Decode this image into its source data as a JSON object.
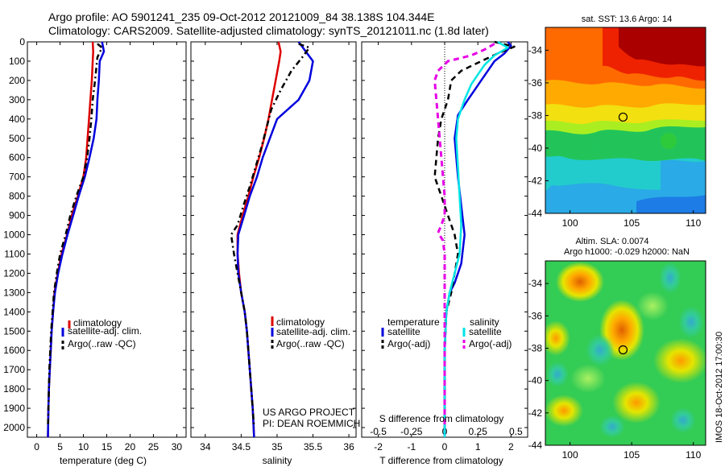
{
  "title_line1": "Argo profile: AO 5901241_235 09-Oct-2012 20121009_84 38.138S 104.344E",
  "title_line2": "Climatology: CARS2009. Satellite-adjusted climatology: synTS_20121011.nc (1.8d later)",
  "depth_ticks": [
    0,
    100,
    200,
    300,
    400,
    500,
    600,
    700,
    800,
    900,
    1000,
    1100,
    1200,
    1300,
    1400,
    1500,
    1600,
    1700,
    1800,
    1900,
    2000
  ],
  "colors": {
    "climatology": "#dd0000",
    "satellite": "#0000dd",
    "argo": "#000000",
    "sal_sat": "#00e5e5",
    "sal_argo": "#e600e6"
  },
  "chart_data": [
    {
      "type": "line",
      "xlabel": "temperature (deg C)",
      "xlim": [
        -2,
        32
      ],
      "x_ticks": [
        0,
        5,
        10,
        15,
        20,
        25,
        30
      ],
      "ylim": [
        2050,
        0
      ],
      "legend": [
        "climatology",
        "satellite-adj. clim.",
        "Argo(..raw -QC)"
      ],
      "series": [
        {
          "name": "climatology",
          "points": [
            [
              12,
              0
            ],
            [
              12.1,
              50
            ],
            [
              12,
              100
            ],
            [
              11.8,
              200
            ],
            [
              11.5,
              300
            ],
            [
              11.2,
              400
            ],
            [
              10.9,
              500
            ],
            [
              10.6,
              600
            ],
            [
              10,
              700
            ],
            [
              8.8,
              800
            ],
            [
              7.5,
              900
            ],
            [
              6.5,
              1000
            ],
            [
              5.3,
              1100
            ],
            [
              4.5,
              1200
            ],
            [
              3.8,
              1300
            ],
            [
              3.5,
              1400
            ],
            [
              3.2,
              1500
            ],
            [
              3,
              1600
            ],
            [
              2.8,
              1700
            ],
            [
              2.6,
              1800
            ],
            [
              2.5,
              1900
            ],
            [
              2.4,
              2050
            ]
          ]
        },
        {
          "name": "satellite-adj. clim.",
          "points": [
            [
              14,
              0
            ],
            [
              14.4,
              50
            ],
            [
              13.5,
              100
            ],
            [
              13.3,
              200
            ],
            [
              13,
              300
            ],
            [
              12.8,
              400
            ],
            [
              12.2,
              500
            ],
            [
              11.3,
              600
            ],
            [
              10.3,
              700
            ],
            [
              9,
              800
            ],
            [
              7.8,
              900
            ],
            [
              6.6,
              1000
            ],
            [
              5.5,
              1100
            ],
            [
              4.6,
              1200
            ],
            [
              3.9,
              1300
            ],
            [
              3.5,
              1400
            ],
            [
              3.2,
              1500
            ],
            [
              3,
              1600
            ],
            [
              2.8,
              1700
            ],
            [
              2.6,
              1800
            ],
            [
              2.5,
              1900
            ],
            [
              2.4,
              2050
            ]
          ]
        },
        {
          "name": "Argo(..raw -QC)",
          "points": [
            [
              13,
              10
            ],
            [
              14,
              30
            ],
            [
              13,
              80
            ],
            [
              12.5,
              200
            ],
            [
              12,
              300
            ],
            [
              11.7,
              400
            ],
            [
              11.3,
              500
            ],
            [
              10.8,
              600
            ],
            [
              10,
              700
            ],
            [
              8.5,
              800
            ],
            [
              7.2,
              900
            ],
            [
              6.2,
              1000
            ],
            [
              5,
              1100
            ],
            [
              4.3,
              1200
            ],
            [
              3.7,
              1300
            ],
            [
              3.4,
              1400
            ],
            [
              3.1,
              1500
            ],
            [
              2.9,
              1600
            ],
            [
              2.7,
              1700
            ],
            [
              2.6,
              1800
            ],
            [
              2.5,
              1900
            ],
            [
              2.4,
              2000
            ]
          ]
        }
      ]
    },
    {
      "type": "line",
      "xlabel": "salinity",
      "xlim": [
        33.8,
        36.1
      ],
      "x_ticks": [
        34,
        34.5,
        35,
        35.5,
        36
      ],
      "ylim": [
        2050,
        0
      ],
      "legend": [
        "climatology",
        "satellite-adj. clim.",
        "Argo(..raw -QC)"
      ],
      "annotation": [
        "US ARGO PROJECT",
        "PI: DEAN ROEMMICH"
      ],
      "series": [
        {
          "name": "climatology",
          "points": [
            [
              35.02,
              0
            ],
            [
              35.05,
              50
            ],
            [
              35.03,
              100
            ],
            [
              34.98,
              200
            ],
            [
              34.93,
              300
            ],
            [
              34.88,
              400
            ],
            [
              34.82,
              500
            ],
            [
              34.75,
              600
            ],
            [
              34.67,
              700
            ],
            [
              34.6,
              800
            ],
            [
              34.52,
              900
            ],
            [
              34.45,
              1000
            ],
            [
              34.45,
              1100
            ],
            [
              34.47,
              1200
            ],
            [
              34.5,
              1300
            ],
            [
              34.55,
              1400
            ],
            [
              34.58,
              1500
            ],
            [
              34.6,
              1600
            ],
            [
              34.62,
              1700
            ],
            [
              34.64,
              1800
            ],
            [
              34.66,
              1900
            ],
            [
              34.68,
              2050
            ]
          ]
        },
        {
          "name": "satellite-adj. clim.",
          "points": [
            [
              35.3,
              0
            ],
            [
              35.4,
              50
            ],
            [
              35.5,
              100
            ],
            [
              35.45,
              200
            ],
            [
              35.3,
              300
            ],
            [
              35,
              400
            ],
            [
              34.9,
              500
            ],
            [
              34.8,
              600
            ],
            [
              34.72,
              700
            ],
            [
              34.62,
              800
            ],
            [
              34.54,
              900
            ],
            [
              34.46,
              1000
            ],
            [
              34.45,
              1100
            ],
            [
              34.46,
              1200
            ],
            [
              34.5,
              1300
            ],
            [
              34.55,
              1400
            ],
            [
              34.58,
              1500
            ],
            [
              34.6,
              1600
            ],
            [
              34.62,
              1700
            ],
            [
              34.64,
              1800
            ],
            [
              34.66,
              1900
            ],
            [
              34.68,
              2050
            ]
          ]
        },
        {
          "name": "Argo(..raw -QC)",
          "points": [
            [
              35.3,
              10
            ],
            [
              35.45,
              30
            ],
            [
              35.35,
              80
            ],
            [
              35.2,
              150
            ],
            [
              35.05,
              250
            ],
            [
              34.92,
              350
            ],
            [
              34.85,
              450
            ],
            [
              34.78,
              550
            ],
            [
              34.7,
              650
            ],
            [
              34.62,
              750
            ],
            [
              34.53,
              850
            ],
            [
              34.45,
              950
            ],
            [
              34.36,
              1000
            ],
            [
              34.4,
              1100
            ],
            [
              34.45,
              1200
            ],
            [
              34.5,
              1300
            ],
            [
              34.55,
              1400
            ],
            [
              34.58,
              1500
            ],
            [
              34.6,
              1600
            ],
            [
              34.62,
              1700
            ],
            [
              34.64,
              1800
            ],
            [
              34.66,
              1900
            ],
            [
              34.68,
              2000
            ]
          ]
        }
      ]
    },
    {
      "type": "line",
      "xlabel": "T difference from climatology",
      "xlabel_top": "S difference from climatology",
      "xlim": [
        -2.5,
        2.5
      ],
      "x_ticks": [
        -2,
        -1,
        0,
        1,
        2
      ],
      "x_ticks_top": [
        "-0.5",
        "-0.25",
        "0",
        "0.25",
        "0.5"
      ],
      "ylim": [
        2050,
        0
      ],
      "legend_headers": [
        "temperature",
        "salinity"
      ],
      "legend": [
        "satellite",
        "Argo(-adj)",
        "satellite",
        "Argo(-adj)"
      ],
      "series": [
        {
          "name": "satellite",
          "points": [
            [
              1.9,
              0
            ],
            [
              2,
              20
            ],
            [
              1.8,
              60
            ],
            [
              1.5,
              100
            ],
            [
              1.3,
              150
            ],
            [
              1.1,
              200
            ],
            [
              0.9,
              250
            ],
            [
              0.7,
              300
            ],
            [
              0.4,
              380
            ],
            [
              0.3,
              500
            ],
            [
              0.4,
              700
            ],
            [
              0.5,
              850
            ],
            [
              0.6,
              1000
            ],
            [
              0.5,
              1150
            ],
            [
              0.3,
              1250
            ],
            [
              0.15,
              1300
            ],
            [
              0.05,
              1400
            ],
            [
              0,
              1600
            ],
            [
              0,
              2050
            ]
          ]
        },
        {
          "name": "Argo(-adj)",
          "points": [
            [
              1.5,
              0
            ],
            [
              2.1,
              25
            ],
            [
              1.6,
              60
            ],
            [
              1.1,
              100
            ],
            [
              0.5,
              150
            ],
            [
              0.2,
              200
            ],
            [
              0.1,
              300
            ],
            [
              -0.1,
              400
            ],
            [
              -0.2,
              500
            ],
            [
              -0.3,
              700
            ],
            [
              -0.1,
              800
            ],
            [
              0.1,
              900
            ],
            [
              0.3,
              1000
            ],
            [
              0.4,
              1100
            ],
            [
              0.3,
              1200
            ],
            [
              0.2,
              1300
            ],
            [
              0.05,
              1400
            ],
            [
              0,
              1600
            ],
            [
              0,
              2000
            ]
          ]
        },
        {
          "name": "satellite",
          "points": [
            [
              1.6,
              0
            ],
            [
              1.9,
              30
            ],
            [
              1.5,
              70
            ],
            [
              1.2,
              120
            ],
            [
              1,
              170
            ],
            [
              0.8,
              220
            ],
            [
              0.6,
              300
            ],
            [
              0.4,
              400
            ],
            [
              0.35,
              500
            ],
            [
              0.4,
              650
            ],
            [
              0.45,
              800
            ],
            [
              0.5,
              950
            ],
            [
              0.45,
              1100
            ],
            [
              0.3,
              1200
            ],
            [
              0.15,
              1300
            ],
            [
              0.05,
              1400
            ],
            [
              0,
              1600
            ],
            [
              0,
              2050
            ]
          ]
        },
        {
          "name": "Argo(-adj)",
          "points": [
            [
              1.5,
              10
            ],
            [
              1.2,
              40
            ],
            [
              0.8,
              70
            ],
            [
              0.1,
              100
            ],
            [
              -0.2,
              150
            ],
            [
              -0.3,
              200
            ],
            [
              -0.25,
              300
            ],
            [
              -0.2,
              400
            ],
            [
              -0.15,
              500
            ],
            [
              -0.1,
              600
            ],
            [
              -0.05,
              700
            ],
            [
              0,
              800
            ],
            [
              0,
              900
            ],
            [
              -0.1,
              950
            ],
            [
              -0.2,
              990
            ],
            [
              -0.05,
              1030
            ],
            [
              0,
              1100
            ],
            [
              0,
              1200
            ],
            [
              0,
              1400
            ],
            [
              0,
              2000
            ]
          ]
        }
      ]
    },
    {
      "type": "heatmap",
      "title": "sat. SST: 13.6 Argo: 14",
      "xlim": [
        98,
        111
      ],
      "ylim": [
        -44,
        -32.6
      ],
      "x_ticks": [
        100,
        105,
        110
      ],
      "y_ticks": [
        -34,
        -36,
        -38,
        -40,
        -42,
        -44
      ],
      "marker": [
        104.3,
        -38.1
      ]
    },
    {
      "type": "heatmap",
      "title_line1": "Altim. SLA: 0.0074",
      "title_line2": "Argo h1000: -0.029 h2000: NaN",
      "xlim": [
        98,
        111
      ],
      "ylim": [
        -44,
        -32.6
      ],
      "x_ticks": [
        100,
        105,
        110
      ],
      "y_ticks": [
        -34,
        -36,
        -38,
        -40,
        -42,
        -44
      ],
      "marker": [
        104.3,
        -38.1
      ],
      "side_label": "IMOS 18-Oct-2012 17:00:30"
    }
  ]
}
